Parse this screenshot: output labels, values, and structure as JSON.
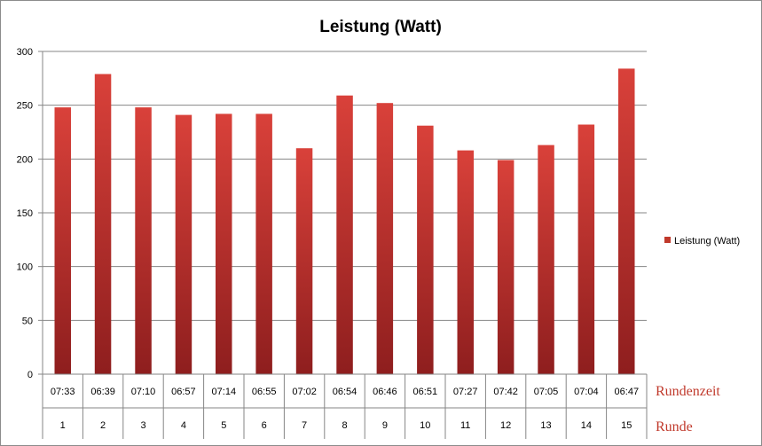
{
  "chart_data": {
    "type": "bar",
    "title": "Leistung (Watt)",
    "xlabel": "",
    "ylabel": "",
    "ylim": [
      0,
      300
    ],
    "yticks": [
      0,
      50,
      100,
      150,
      200,
      250,
      300
    ],
    "grid": true,
    "legend_position": "right",
    "categories": [
      "1",
      "2",
      "3",
      "4",
      "5",
      "6",
      "7",
      "8",
      "9",
      "10",
      "11",
      "12",
      "13",
      "14",
      "15"
    ],
    "lap_times": [
      "07:33",
      "06:39",
      "07:10",
      "06:57",
      "07:14",
      "06:55",
      "07:02",
      "06:54",
      "06:46",
      "06:51",
      "07:27",
      "07:42",
      "07:05",
      "07:04",
      "06:47"
    ],
    "series": [
      {
        "name": "Leistung (Watt)",
        "color": "#c0392b",
        "values": [
          248,
          279,
          248,
          241,
          242,
          242,
          210,
          259,
          252,
          231,
          208,
          199,
          213,
          232,
          284
        ]
      }
    ],
    "row_titles": {
      "lap_time": "Rundenzeit",
      "lap": "Runde"
    }
  }
}
